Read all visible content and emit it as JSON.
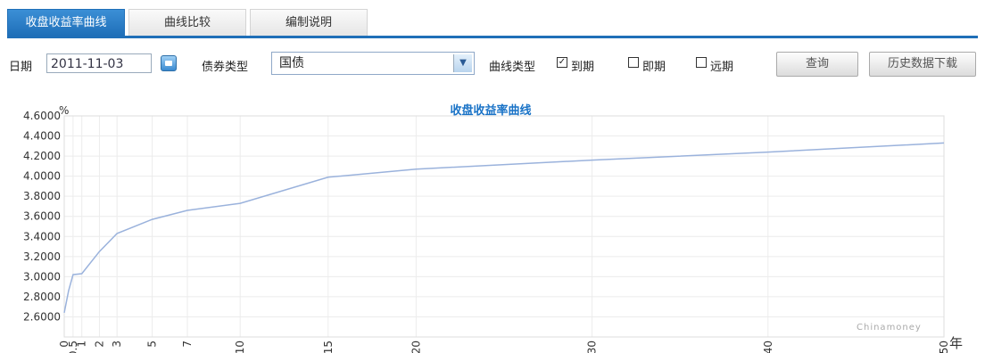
{
  "tabs": [
    {
      "label": "收盘收益率曲线",
      "active": true
    },
    {
      "label": "曲线比较",
      "active": false
    },
    {
      "label": "编制说明",
      "active": false
    }
  ],
  "toolbar": {
    "date_label": "日期",
    "date_value": "2011-11-03",
    "bond_type_label": "债券类型",
    "bond_type_value": "国债",
    "curve_type_label": "曲线类型",
    "checkboxes": [
      {
        "label": "到期",
        "checked": true
      },
      {
        "label": "即期",
        "checked": false
      },
      {
        "label": "远期",
        "checked": false
      }
    ],
    "query_button": "查询",
    "download_button": "历史数据下载"
  },
  "chart_data": {
    "type": "line",
    "title": "收盘收益率曲线",
    "ylabel": "%",
    "xlabel": "年",
    "ylim": [
      2.4,
      4.6
    ],
    "yticks": [
      "2.6000",
      "2.8000",
      "3.0000",
      "3.2000",
      "3.4000",
      "3.6000",
      "3.8000",
      "4.0000",
      "4.2000",
      "4.4000",
      "4.6000"
    ],
    "xlim": [
      0,
      50
    ],
    "xticks": [
      "0",
      "0.5",
      "1",
      "2",
      "3",
      "5",
      "7",
      "10",
      "15",
      "20",
      "30",
      "40",
      "50"
    ],
    "grid": true,
    "watermark": "Chinamoney",
    "series": [
      {
        "color": "#9ab2dc",
        "x": [
          0,
          0.25,
          0.5,
          1,
          2,
          3,
          5,
          7,
          10,
          15,
          20,
          30,
          40,
          50
        ],
        "y": [
          2.64,
          2.86,
          3.02,
          3.03,
          3.25,
          3.43,
          3.57,
          3.66,
          3.73,
          3.99,
          4.07,
          4.16,
          4.24,
          4.33
        ]
      }
    ]
  }
}
